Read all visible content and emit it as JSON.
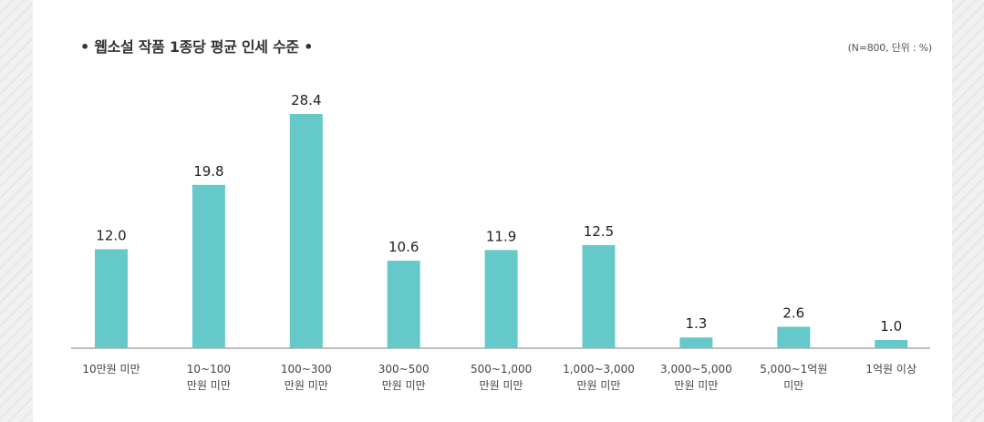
{
  "chart_data": {
    "type": "bar",
    "title": "• 웹소설 작품 1종당 평균 인세 수준 •",
    "note": "(N=800, 단위 : %)",
    "categories": [
      [
        "10만원 미만"
      ],
      [
        "10~100",
        "만원 미만"
      ],
      [
        "100~300",
        "만원 미만"
      ],
      [
        "300~500",
        "만원 미만"
      ],
      [
        "500~1,000",
        "만원 미만"
      ],
      [
        "1,000~3,000",
        "만원 미만"
      ],
      [
        "3,000~5,000",
        "만원 미만"
      ],
      [
        "5,000~1억원",
        "미만"
      ],
      [
        "1억원 이상"
      ]
    ],
    "values": [
      12.0,
      19.8,
      28.4,
      10.6,
      11.9,
      12.5,
      1.3,
      2.6,
      1.0
    ],
    "value_labels": [
      "12.0",
      "19.8",
      "28.4",
      "10.6",
      "11.9",
      "12.5",
      "1.3",
      "2.6",
      "1.0"
    ],
    "ylim": [
      0,
      28.4
    ],
    "grid": false,
    "bar_color": "#66c9c9",
    "axis_color": "#aaaaaa"
  }
}
